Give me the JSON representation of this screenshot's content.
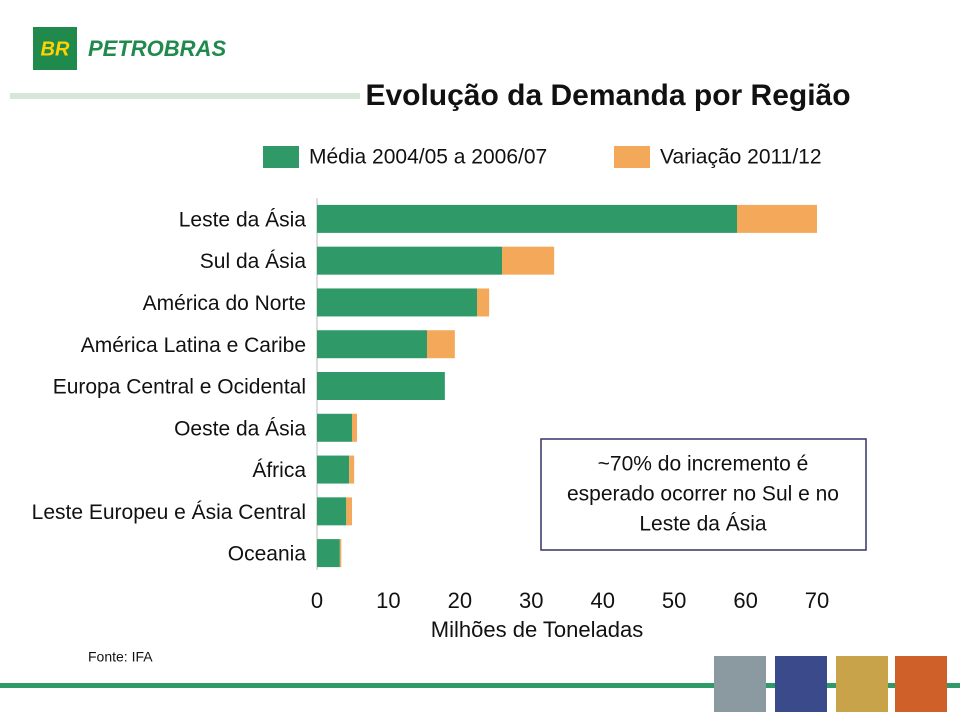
{
  "logo": {
    "mark": "BR",
    "name": "PETROBRAS"
  },
  "source": "Fonte: IFA",
  "chart_data": {
    "type": "bar",
    "orientation": "horizontal",
    "stacked": true,
    "title": "Evolução da Demanda por Região",
    "categories": [
      "Leste da Ásia",
      "Sul da Ásia",
      "América do Norte",
      "América Latina e Caribe",
      "Europa Central e Ocidental",
      "Oeste da Ásia",
      "África",
      "Leste Europeu e Ásia Central",
      "Oceania"
    ],
    "series": [
      {
        "name": "Média 2004/05 a 2006/07",
        "color": "#2f9a68",
        "values": [
          58.8,
          25.9,
          22.4,
          15.4,
          17.9,
          4.9,
          4.5,
          4.1,
          3.2
        ]
      },
      {
        "name": "Variação 2011/12",
        "color": "#f4a95a",
        "values": [
          11.2,
          7.3,
          1.7,
          3.9,
          0,
          0.7,
          0.7,
          0.8,
          0.2
        ]
      }
    ],
    "xlim": [
      0,
      70
    ],
    "xticks": [
      0,
      10,
      20,
      30,
      40,
      50,
      60,
      70
    ],
    "xlabel": "Milhões de Toneladas",
    "annotation": [
      "~70% do incremento é",
      "esperado ocorrer no Sul e no",
      "Leste da Ásia"
    ]
  }
}
